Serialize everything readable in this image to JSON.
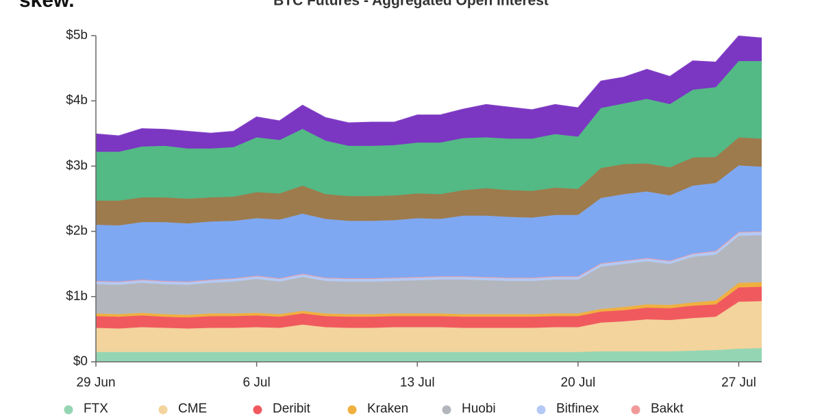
{
  "logo": "skew.",
  "chart_data": {
    "type": "stacked_area",
    "title": "BTC Futures - Aggregated Open Interest",
    "categories": [
      "29 Jun",
      null,
      null,
      null,
      null,
      null,
      null,
      "6 Jul",
      null,
      null,
      null,
      null,
      null,
      null,
      "13 Jul",
      null,
      null,
      null,
      null,
      null,
      null,
      "20 Jul",
      null,
      null,
      null,
      null,
      null,
      null,
      "27 Jul",
      null
    ],
    "ylim": [
      0,
      5
    ],
    "yticks": [
      {
        "value": 0,
        "label": "$0"
      },
      {
        "value": 1,
        "label": "$1b"
      },
      {
        "value": 2,
        "label": "$2b"
      },
      {
        "value": 3,
        "label": "$3b"
      },
      {
        "value": 4,
        "label": "$4b"
      },
      {
        "value": 5,
        "label": "$5b"
      }
    ],
    "grid": false,
    "legend": "bottom",
    "series": [
      {
        "name": "FTX",
        "color": "#94d6b4",
        "values": [
          0.15,
          0.15,
          0.15,
          0.15,
          0.15,
          0.15,
          0.15,
          0.15,
          0.15,
          0.15,
          0.15,
          0.15,
          0.15,
          0.15,
          0.15,
          0.15,
          0.15,
          0.15,
          0.15,
          0.15,
          0.15,
          0.15,
          0.16,
          0.16,
          0.16,
          0.16,
          0.17,
          0.18,
          0.2,
          0.21
        ]
      },
      {
        "name": "CME",
        "color": "#f3d49c",
        "values": [
          0.37,
          0.36,
          0.38,
          0.37,
          0.36,
          0.37,
          0.37,
          0.38,
          0.37,
          0.42,
          0.38,
          0.37,
          0.37,
          0.38,
          0.38,
          0.38,
          0.37,
          0.37,
          0.37,
          0.37,
          0.38,
          0.38,
          0.44,
          0.46,
          0.49,
          0.48,
          0.5,
          0.51,
          0.72,
          0.72
        ]
      },
      {
        "name": "Deribit",
        "color": "#f05a5f",
        "values": [
          0.18,
          0.18,
          0.18,
          0.17,
          0.17,
          0.18,
          0.18,
          0.18,
          0.17,
          0.17,
          0.17,
          0.17,
          0.17,
          0.17,
          0.17,
          0.17,
          0.17,
          0.17,
          0.17,
          0.17,
          0.17,
          0.17,
          0.17,
          0.17,
          0.18,
          0.18,
          0.19,
          0.19,
          0.22,
          0.22
        ]
      },
      {
        "name": "Kraken",
        "color": "#f0b040",
        "values": [
          0.04,
          0.04,
          0.04,
          0.04,
          0.04,
          0.04,
          0.04,
          0.04,
          0.04,
          0.04,
          0.04,
          0.04,
          0.04,
          0.04,
          0.04,
          0.04,
          0.04,
          0.04,
          0.04,
          0.04,
          0.04,
          0.04,
          0.04,
          0.05,
          0.05,
          0.05,
          0.05,
          0.06,
          0.07,
          0.07
        ]
      },
      {
        "name": "Huobi",
        "color": "#b3b7bd",
        "values": [
          0.45,
          0.45,
          0.46,
          0.46,
          0.46,
          0.47,
          0.49,
          0.52,
          0.5,
          0.52,
          0.5,
          0.5,
          0.5,
          0.5,
          0.51,
          0.52,
          0.53,
          0.52,
          0.51,
          0.51,
          0.52,
          0.52,
          0.65,
          0.66,
          0.66,
          0.63,
          0.7,
          0.7,
          0.72,
          0.72
        ]
      },
      {
        "name": "Bitfinex",
        "color": "#b4c9f5",
        "values": [
          0.05,
          0.05,
          0.05,
          0.05,
          0.05,
          0.05,
          0.05,
          0.05,
          0.05,
          0.05,
          0.05,
          0.05,
          0.05,
          0.05,
          0.05,
          0.05,
          0.05,
          0.05,
          0.05,
          0.05,
          0.05,
          0.05,
          0.05,
          0.05,
          0.05,
          0.05,
          0.05,
          0.06,
          0.06,
          0.06
        ]
      },
      {
        "name": "Bakkt",
        "color": "#f29a9a",
        "values": [
          0,
          0,
          0,
          0,
          0,
          0,
          0,
          0,
          0,
          0,
          0,
          0,
          0,
          0,
          0,
          0,
          0,
          0,
          0,
          0,
          0,
          0,
          0,
          0,
          0,
          0,
          0,
          0,
          0,
          0
        ]
      },
      {
        "color": "#7fa8f3",
        "values": [
          0.86,
          0.86,
          0.88,
          0.9,
          0.89,
          0.89,
          0.88,
          0.88,
          0.9,
          0.92,
          0.9,
          0.88,
          0.88,
          0.88,
          0.9,
          0.88,
          0.93,
          0.94,
          0.93,
          0.92,
          0.94,
          0.94,
          1.0,
          1.02,
          1.02,
          1.0,
          1.04,
          1.04,
          1.02,
          0.99
        ]
      },
      {
        "color": "#9e7b4c",
        "values": [
          0.37,
          0.38,
          0.38,
          0.38,
          0.38,
          0.37,
          0.37,
          0.4,
          0.4,
          0.43,
          0.38,
          0.38,
          0.38,
          0.38,
          0.38,
          0.38,
          0.39,
          0.42,
          0.41,
          0.41,
          0.42,
          0.4,
          0.46,
          0.46,
          0.43,
          0.43,
          0.43,
          0.4,
          0.43,
          0.43
        ]
      },
      {
        "color": "#53b985",
        "values": [
          0.75,
          0.75,
          0.78,
          0.79,
          0.77,
          0.75,
          0.76,
          0.84,
          0.82,
          0.87,
          0.82,
          0.77,
          0.77,
          0.77,
          0.78,
          0.79,
          0.8,
          0.78,
          0.79,
          0.8,
          0.82,
          0.8,
          0.92,
          0.93,
          0.99,
          0.97,
          1.04,
          1.07,
          1.17,
          1.19
        ]
      },
      {
        "color": "#7b36c2",
        "values": [
          0.27,
          0.24,
          0.27,
          0.25,
          0.26,
          0.23,
          0.24,
          0.31,
          0.29,
          0.36,
          0.35,
          0.35,
          0.36,
          0.35,
          0.42,
          0.42,
          0.44,
          0.5,
          0.48,
          0.44,
          0.45,
          0.44,
          0.41,
          0.4,
          0.45,
          0.42,
          0.44,
          0.38,
          0.38,
          0.35
        ]
      }
    ]
  }
}
